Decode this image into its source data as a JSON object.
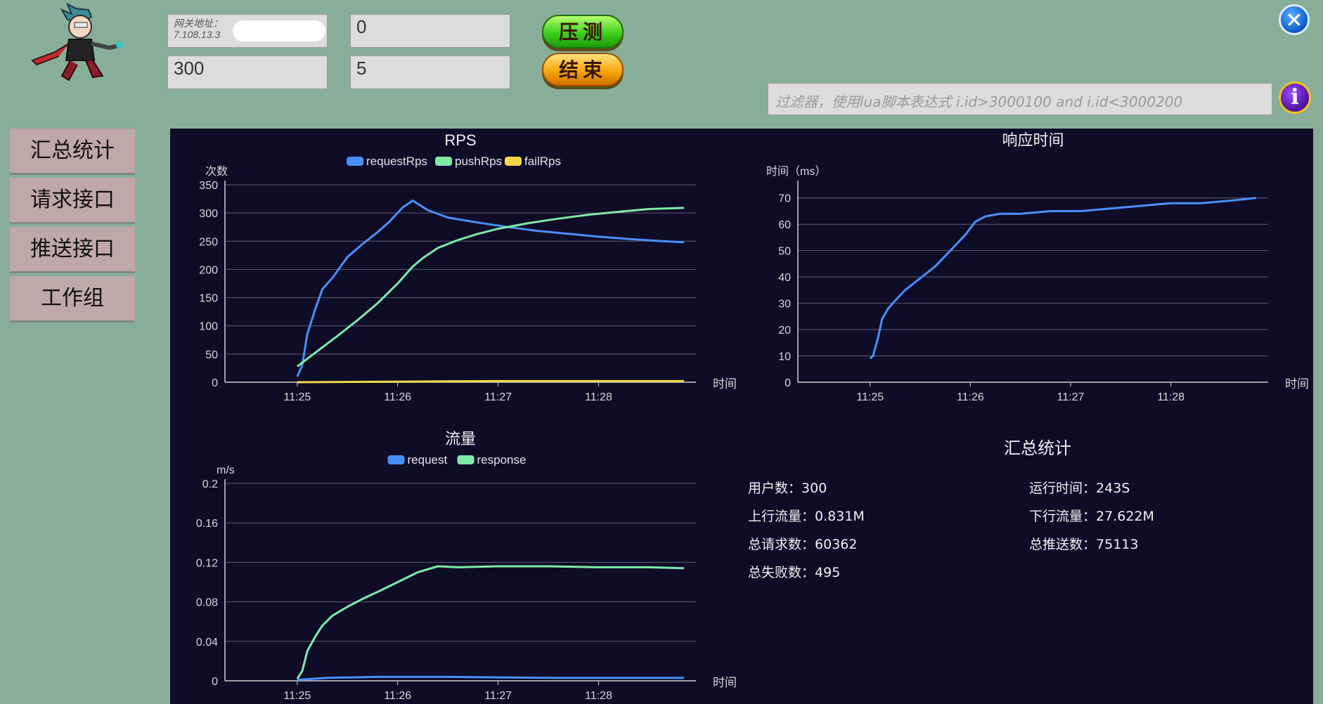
{
  "toolbar": {
    "gateway_label": "网关地址：",
    "gateway_value": "7.108.13.3",
    "field2": "0",
    "users": "300",
    "field4": "5",
    "start_label": "压测",
    "end_label": "结束",
    "filter_placeholder": "过滤器，使用lua脚本表达式        i.id>3000100 and i.id<3000200"
  },
  "nav": {
    "items": [
      {
        "label": "汇总统计"
      },
      {
        "label": "请求接口"
      },
      {
        "label": "推送接口"
      },
      {
        "label": "工作组"
      }
    ]
  },
  "colors": {
    "background": "#88ae9a",
    "panel": "#0f0c28",
    "blue": "#4a8ff5",
    "green": "#7deaa8",
    "yellow": "#f5d84a"
  },
  "chart_data": [
    {
      "type": "line",
      "title": "RPS",
      "ylabel": "次数",
      "xlabel": "时间",
      "ylim": [
        0,
        350
      ],
      "yticks": [
        0,
        50,
        100,
        150,
        200,
        250,
        300,
        350
      ],
      "xticks": [
        "11:25",
        "11:26",
        "11:27",
        "11:28"
      ],
      "legend": "top",
      "series": [
        {
          "name": "requestRps",
          "color": "#4a8ff5",
          "x": [
            0,
            0.05,
            0.1,
            0.18,
            0.25,
            0.35,
            0.5,
            0.65,
            0.8,
            0.92,
            1.05,
            1.15,
            1.3,
            1.5,
            1.8,
            2.1,
            2.4,
            2.7,
            3.0,
            3.3,
            3.55,
            3.85
          ],
          "y": [
            10,
            30,
            85,
            130,
            165,
            185,
            222,
            245,
            266,
            285,
            310,
            322,
            305,
            292,
            283,
            275,
            268,
            263,
            258,
            254,
            251,
            248
          ]
        },
        {
          "name": "pushRps",
          "color": "#7deaa8",
          "x": [
            0,
            0.2,
            0.4,
            0.6,
            0.8,
            1.0,
            1.15,
            1.25,
            1.4,
            1.6,
            1.8,
            2.0,
            2.3,
            2.6,
            2.9,
            3.2,
            3.5,
            3.85
          ],
          "y": [
            28,
            55,
            82,
            110,
            140,
            175,
            205,
            220,
            238,
            252,
            263,
            272,
            282,
            290,
            297,
            302,
            307,
            309
          ]
        },
        {
          "name": "failRps",
          "color": "#f5d84a",
          "x": [
            0,
            1,
            2,
            3,
            3.85
          ],
          "y": [
            0,
            1,
            2,
            2,
            2
          ]
        }
      ]
    },
    {
      "type": "line",
      "title": "响应时间",
      "ylabel": "时间（ms）",
      "xlabel": "时间",
      "ylim": [
        0,
        75
      ],
      "yticks": [
        0,
        10,
        20,
        30,
        40,
        50,
        60,
        70
      ],
      "xticks": [
        "11:25",
        "11:26",
        "11:27",
        "11:28"
      ],
      "series": [
        {
          "name": "",
          "color": "#4a8ff5",
          "x": [
            0,
            0.03,
            0.08,
            0.12,
            0.18,
            0.25,
            0.35,
            0.45,
            0.55,
            0.65,
            0.75,
            0.85,
            0.95,
            1.05,
            1.15,
            1.3,
            1.5,
            1.8,
            2.1,
            2.4,
            2.7,
            3.0,
            3.3,
            3.6,
            3.85
          ],
          "y": [
            9,
            10,
            17,
            24,
            28,
            31,
            35,
            38,
            41,
            44,
            48,
            52,
            56,
            61,
            63,
            64,
            64,
            65,
            65,
            66,
            67,
            68,
            68,
            69,
            70
          ]
        }
      ]
    },
    {
      "type": "line",
      "title": "流量",
      "ylabel": "m/s",
      "xlabel": "时间",
      "ylim": [
        0,
        0.2
      ],
      "yticks": [
        0,
        0.04,
        0.08,
        0.12,
        0.16,
        0.2
      ],
      "xticks": [
        "11:25",
        "11:26",
        "11:27",
        "11:28"
      ],
      "legend": "top",
      "series": [
        {
          "name": "request",
          "color": "#4a8ff5",
          "x": [
            0,
            0.3,
            0.8,
            1.5,
            2.5,
            3.85
          ],
          "y": [
            0.001,
            0.003,
            0.004,
            0.004,
            0.003,
            0.003
          ]
        },
        {
          "name": "response",
          "color": "#7deaa8",
          "x": [
            0,
            0.05,
            0.1,
            0.18,
            0.25,
            0.35,
            0.5,
            0.65,
            0.8,
            1.0,
            1.2,
            1.4,
            1.6,
            2.0,
            2.5,
            3.0,
            3.5,
            3.85
          ],
          "y": [
            0.002,
            0.01,
            0.03,
            0.045,
            0.056,
            0.066,
            0.075,
            0.083,
            0.09,
            0.1,
            0.11,
            0.116,
            0.115,
            0.116,
            0.116,
            0.115,
            0.115,
            0.114
          ]
        }
      ]
    }
  ],
  "summary": {
    "title": "汇总统计",
    "items": [
      {
        "label": "用户数：",
        "value": "300"
      },
      {
        "label": "运行时间：",
        "value": "243S"
      },
      {
        "label": "上行流量：",
        "value": "0.831M"
      },
      {
        "label": "下行流量：",
        "value": "27.622M"
      },
      {
        "label": "总请求数：",
        "value": "60362"
      },
      {
        "label": "总推送数：",
        "value": "75113"
      },
      {
        "label": "总失败数：",
        "value": "495"
      }
    ]
  }
}
